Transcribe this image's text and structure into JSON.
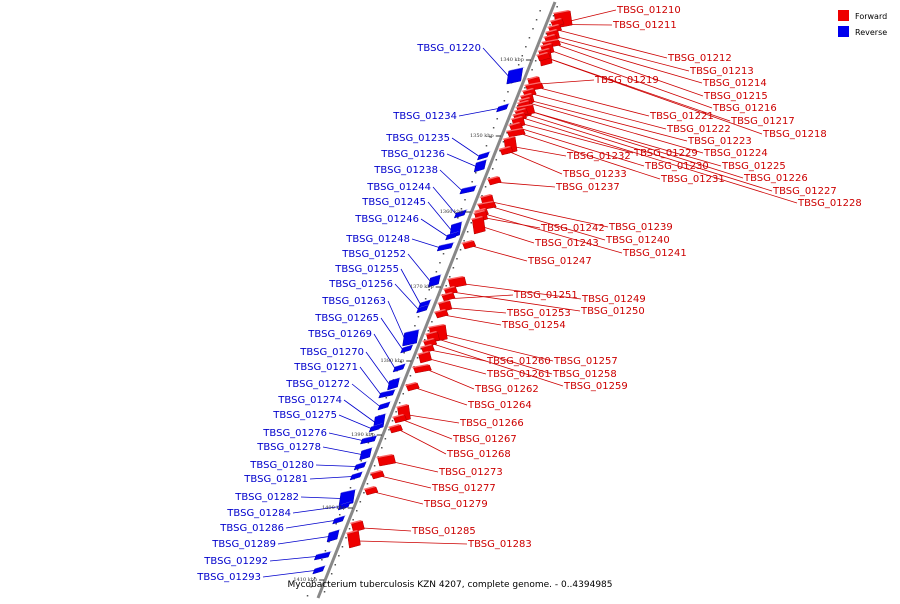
{
  "caption": "Mycobacterium tuberculosis KZN 4207, complete genome. - 0..4394985",
  "legend": [
    {
      "label": "Forward",
      "color": "#ee0000"
    },
    {
      "label": "Reverse",
      "color": "#0000ee"
    }
  ],
  "colors": {
    "forward": "#ee0000",
    "reverse": "#0000ee",
    "forward_label": "#cc0000",
    "reverse_label": "#0000cc",
    "backbone": "#888888"
  },
  "ticks": [
    "1340 kbp",
    "1350 kbp",
    "1360 kbp",
    "1370 kbp",
    "1380 kbp",
    "1390 kbp",
    "1400 kbp",
    "1410 kbp"
  ],
  "forward_genes": [
    "TBSG_01210",
    "TBSG_01211",
    "TBSG_01212",
    "TBSG_01213",
    "TBSG_01214",
    "TBSG_01215",
    "TBSG_01216",
    "TBSG_01217",
    "TBSG_01218",
    "TBSG_01219",
    "TBSG_01221",
    "TBSG_01222",
    "TBSG_01223",
    "TBSG_01224",
    "TBSG_01225",
    "TBSG_01226",
    "TBSG_01227",
    "TBSG_01228",
    "TBSG_01229",
    "TBSG_01230",
    "TBSG_01231",
    "TBSG_01232",
    "TBSG_01233",
    "TBSG_01237",
    "TBSG_01239",
    "TBSG_01240",
    "TBSG_01241",
    "TBSG_01242",
    "TBSG_01243",
    "TBSG_01247",
    "TBSG_01249",
    "TBSG_01250",
    "TBSG_01251",
    "TBSG_01253",
    "TBSG_01254",
    "TBSG_01257",
    "TBSG_01258",
    "TBSG_01259",
    "TBSG_01260",
    "TBSG_01261",
    "TBSG_01262",
    "TBSG_01264",
    "TBSG_01266",
    "TBSG_01267",
    "TBSG_01268",
    "TBSG_01273",
    "TBSG_01277",
    "TBSG_01279",
    "TBSG_01285",
    "TBSG_01283"
  ],
  "reverse_genes": [
    "TBSG_01220",
    "TBSG_01234",
    "TBSG_01235",
    "TBSG_01236",
    "TBSG_01238",
    "TBSG_01244",
    "TBSG_01245",
    "TBSG_01246",
    "TBSG_01248",
    "TBSG_01252",
    "TBSG_01255",
    "TBSG_01256",
    "TBSG_01263",
    "TBSG_01265",
    "TBSG_01269",
    "TBSG_01270",
    "TBSG_01271",
    "TBSG_01272",
    "TBSG_01274",
    "TBSG_01275",
    "TBSG_01276",
    "TBSG_01278",
    "TBSG_01280",
    "TBSG_01281",
    "TBSG_01282",
    "TBSG_01284",
    "TBSG_01286",
    "TBSG_01289",
    "TBSG_01292",
    "TBSG_01293"
  ]
}
